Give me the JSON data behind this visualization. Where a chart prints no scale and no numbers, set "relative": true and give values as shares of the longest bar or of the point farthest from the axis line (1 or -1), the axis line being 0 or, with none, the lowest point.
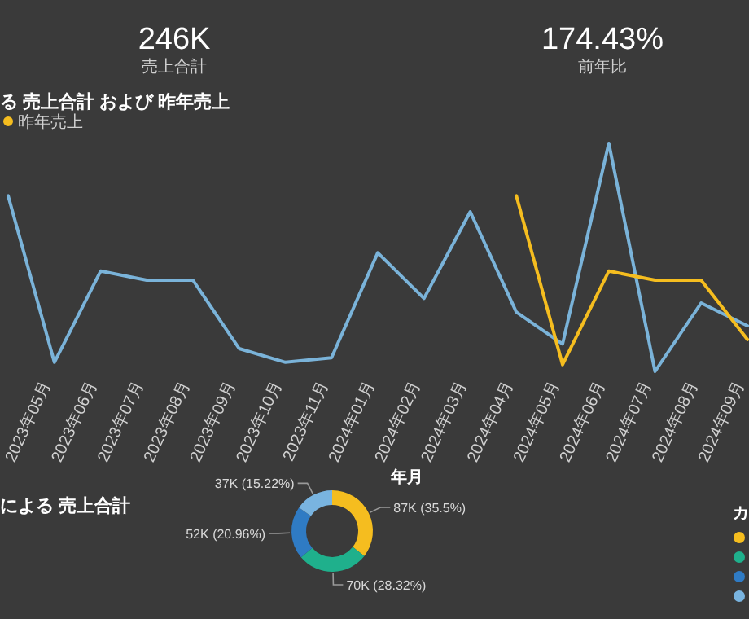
{
  "chart_data": [
    {
      "type": "other",
      "annotations": [
        "246K",
        "売上合計"
      ]
    },
    {
      "type": "other",
      "annotations": [
        "174.43%",
        "前年比"
      ]
    },
    {
      "type": "line",
      "title": "る 売上合計 および 昨年売上",
      "xlabel": "年月",
      "relative": true,
      "legend": "top left",
      "marker": "none",
      "line_style": "solid",
      "categories": [
        null,
        "2023年05月",
        "2023年06月",
        "2023年07月",
        "2023年08月",
        "2023年09月",
        "2023年10月",
        "2023年11月",
        "2024年01月",
        "2024年02月",
        "2024年03月",
        "2024年04月",
        "2024年05月",
        "2024年06月",
        "2024年07月",
        "2024年08月",
        "2024年09月"
      ],
      "series": [
        {
          "color": "#7ab3d9",
          "values": [
            0.77,
            0.04,
            0.44,
            0.4,
            0.4,
            0.1,
            0.04,
            0.06,
            0.52,
            0.32,
            0.7,
            0.26,
            0.12,
            1,
            0,
            0.3,
            0.2
          ]
        },
        {
          "name": "昨年売上",
          "color": "#f5bd1f",
          "values": [
            null,
            null,
            null,
            null,
            null,
            null,
            null,
            null,
            null,
            null,
            null,
            0.77,
            0.03,
            0.44,
            0.4,
            0.4,
            0.14
          ]
        }
      ]
    },
    {
      "type": "donut",
      "title": "による 売上合計",
      "legend_title": "カ",
      "categories": [
        null,
        null,
        null,
        null
      ],
      "values": [
        35.5,
        28.32,
        20.96,
        15.22
      ],
      "colors": [
        "#f5bd1f",
        "#1fb08c",
        "#2f7bc4",
        "#79b4e0"
      ],
      "value_labels": [
        "87K (35.5%)",
        "70K (28.32%)",
        "52K (20.96%)",
        "37K (15.22%)"
      ]
    }
  ]
}
